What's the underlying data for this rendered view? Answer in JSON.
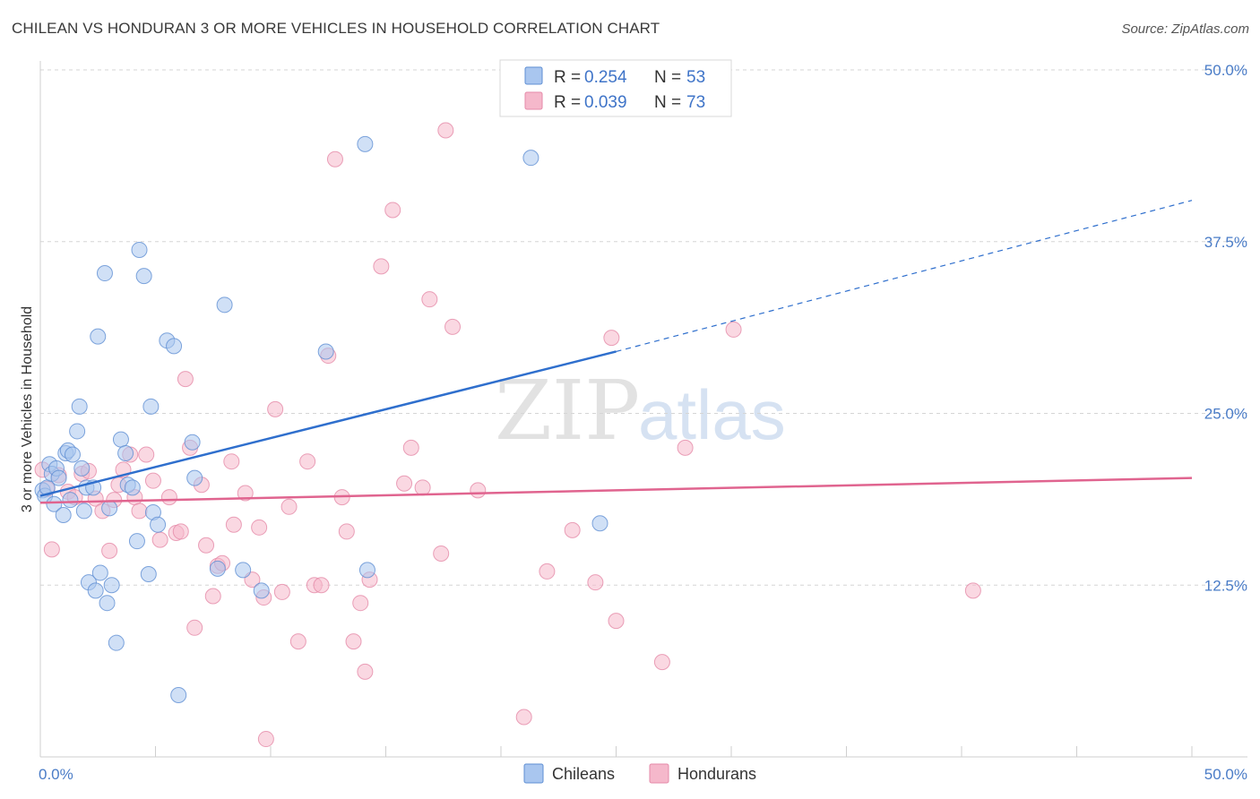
{
  "title": "CHILEAN VS HONDURAN 3 OR MORE VEHICLES IN HOUSEHOLD CORRELATION CHART",
  "source": "Source: ZipAtlas.com",
  "watermark": {
    "zip": "ZIP",
    "atlas": "atlas"
  },
  "colors": {
    "chileans_fill": "#a9c6ef",
    "chileans_stroke": "#5f8fd3",
    "chileans_line": "#2f6fcd",
    "hondurans_fill": "#f5b8cb",
    "hondurans_stroke": "#e58aa8",
    "hondurans_line": "#e0648f",
    "tick_label": "#4a7cc7",
    "grid": "#d5d5d5"
  },
  "legend": {
    "rows": [
      {
        "r_label": "R =",
        "r_value": "0.254",
        "n_label": "N =",
        "n_value": "53"
      },
      {
        "r_label": "R =",
        "r_value": "0.039",
        "n_label": "N =",
        "n_value": "73"
      }
    ]
  },
  "chart_data": {
    "type": "scatter",
    "ylabel": "3 or more Vehicles in Household",
    "xlim": [
      0,
      50
    ],
    "ylim": [
      0,
      50
    ],
    "x_tick_labels": [
      "0.0%",
      "50.0%"
    ],
    "y_ticks": [
      12.5,
      25.0,
      37.5,
      50.0
    ],
    "y_tick_labels": [
      "12.5%",
      "25.0%",
      "37.5%",
      "50.0%"
    ],
    "grid": true,
    "legend_position": "top-center",
    "series": [
      {
        "name": "Chileans",
        "r": 0.254,
        "n": 53,
        "trend": {
          "x0": 0,
          "y0": 19.0,
          "x1": 25,
          "y1": 29.5,
          "dash_x1": 50,
          "dash_y1": 40.5
        },
        "points": [
          [
            0.1,
            19.4
          ],
          [
            0.2,
            19.0
          ],
          [
            0.3,
            19.6
          ],
          [
            0.4,
            21.3
          ],
          [
            0.5,
            20.6
          ],
          [
            0.6,
            18.4
          ],
          [
            0.7,
            21.0
          ],
          [
            0.8,
            20.3
          ],
          [
            1.0,
            17.6
          ],
          [
            1.1,
            22.1
          ],
          [
            1.2,
            22.3
          ],
          [
            1.3,
            18.7
          ],
          [
            1.4,
            22.0
          ],
          [
            1.6,
            23.7
          ],
          [
            1.7,
            25.5
          ],
          [
            1.8,
            21.0
          ],
          [
            1.9,
            17.9
          ],
          [
            2.0,
            19.6
          ],
          [
            2.1,
            12.7
          ],
          [
            2.3,
            19.6
          ],
          [
            2.4,
            12.1
          ],
          [
            2.5,
            30.6
          ],
          [
            2.6,
            13.4
          ],
          [
            2.8,
            35.2
          ],
          [
            2.9,
            11.2
          ],
          [
            3.0,
            18.1
          ],
          [
            3.1,
            12.5
          ],
          [
            3.3,
            8.3
          ],
          [
            3.5,
            23.1
          ],
          [
            3.7,
            22.1
          ],
          [
            3.8,
            19.8
          ],
          [
            4.0,
            19.6
          ],
          [
            4.2,
            15.7
          ],
          [
            4.3,
            36.9
          ],
          [
            4.5,
            35.0
          ],
          [
            4.7,
            13.3
          ],
          [
            4.8,
            25.5
          ],
          [
            4.9,
            17.8
          ],
          [
            5.1,
            16.9
          ],
          [
            5.5,
            30.3
          ],
          [
            5.8,
            29.9
          ],
          [
            6.0,
            4.5
          ],
          [
            6.6,
            22.9
          ],
          [
            6.7,
            20.3
          ],
          [
            7.7,
            13.7
          ],
          [
            8.0,
            32.9
          ],
          [
            8.8,
            13.6
          ],
          [
            9.6,
            12.1
          ],
          [
            12.4,
            29.5
          ],
          [
            14.1,
            44.6
          ],
          [
            14.2,
            13.6
          ],
          [
            21.3,
            43.6
          ],
          [
            24.3,
            17.0
          ]
        ]
      },
      {
        "name": "Hondurans",
        "r": 0.039,
        "n": 73,
        "trend": {
          "x0": 0,
          "y0": 18.5,
          "x1": 50,
          "y1": 20.3
        },
        "points": [
          [
            0.1,
            20.9
          ],
          [
            0.3,
            19.5
          ],
          [
            0.5,
            15.1
          ],
          [
            0.8,
            20.5
          ],
          [
            1.2,
            19.3
          ],
          [
            1.5,
            18.9
          ],
          [
            1.8,
            20.6
          ],
          [
            2.1,
            20.8
          ],
          [
            2.4,
            18.8
          ],
          [
            2.7,
            17.9
          ],
          [
            3.0,
            15.0
          ],
          [
            3.2,
            18.7
          ],
          [
            3.4,
            19.8
          ],
          [
            3.6,
            20.9
          ],
          [
            3.9,
            22.0
          ],
          [
            4.1,
            18.9
          ],
          [
            4.3,
            17.9
          ],
          [
            4.6,
            22.0
          ],
          [
            4.9,
            20.1
          ],
          [
            5.2,
            15.8
          ],
          [
            5.6,
            18.9
          ],
          [
            5.9,
            16.3
          ],
          [
            6.1,
            16.4
          ],
          [
            6.3,
            27.5
          ],
          [
            6.5,
            22.5
          ],
          [
            6.7,
            9.4
          ],
          [
            7.0,
            19.8
          ],
          [
            7.2,
            15.4
          ],
          [
            7.5,
            11.7
          ],
          [
            7.7,
            13.9
          ],
          [
            7.9,
            14.1
          ],
          [
            8.3,
            21.5
          ],
          [
            8.4,
            16.9
          ],
          [
            8.9,
            19.2
          ],
          [
            9.2,
            12.9
          ],
          [
            9.5,
            16.7
          ],
          [
            9.7,
            11.6
          ],
          [
            10.2,
            25.3
          ],
          [
            10.5,
            12.0
          ],
          [
            10.8,
            18.2
          ],
          [
            11.2,
            8.4
          ],
          [
            11.6,
            21.5
          ],
          [
            11.9,
            12.5
          ],
          [
            12.2,
            12.5
          ],
          [
            12.5,
            29.2
          ],
          [
            12.8,
            43.5
          ],
          [
            13.1,
            18.9
          ],
          [
            13.3,
            16.4
          ],
          [
            13.6,
            8.4
          ],
          [
            13.9,
            11.2
          ],
          [
            14.1,
            6.2
          ],
          [
            14.3,
            12.9
          ],
          [
            14.8,
            35.7
          ],
          [
            15.3,
            39.8
          ],
          [
            15.8,
            19.9
          ],
          [
            16.1,
            22.5
          ],
          [
            16.6,
            19.6
          ],
          [
            16.9,
            33.3
          ],
          [
            17.4,
            14.8
          ],
          [
            17.6,
            45.6
          ],
          [
            17.9,
            31.3
          ],
          [
            21.0,
            2.9
          ],
          [
            23.1,
            16.5
          ],
          [
            24.1,
            12.7
          ],
          [
            24.8,
            30.5
          ],
          [
            25.0,
            9.9
          ],
          [
            27.0,
            6.9
          ],
          [
            28.0,
            22.5
          ],
          [
            30.1,
            31.1
          ],
          [
            40.5,
            12.1
          ],
          [
            9.8,
            1.3
          ],
          [
            22.0,
            13.5
          ],
          [
            19.0,
            19.4
          ]
        ]
      }
    ]
  },
  "bottom_legend": [
    "Chileans",
    "Hondurans"
  ]
}
